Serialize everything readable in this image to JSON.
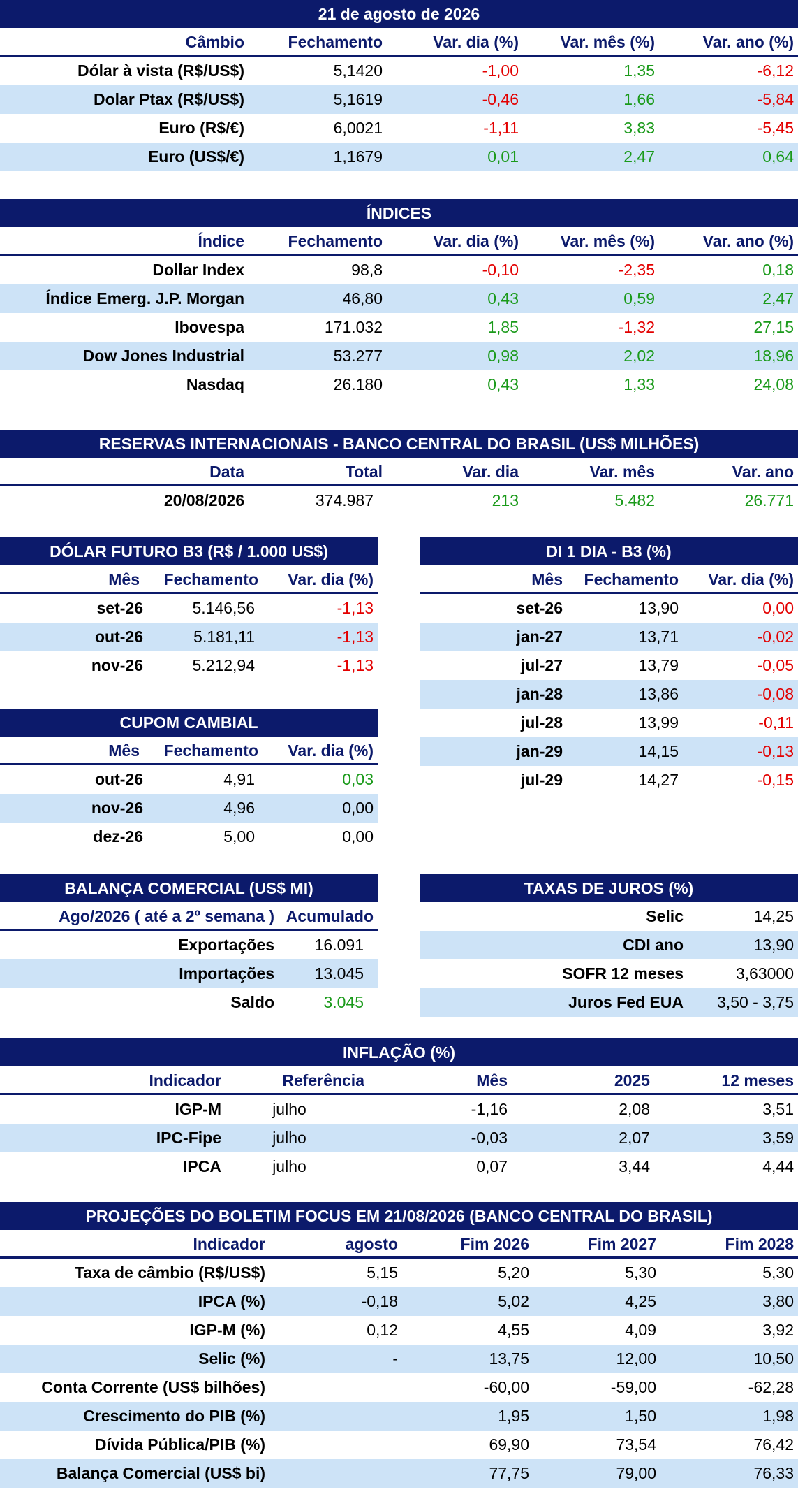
{
  "date_title": "21 de agosto de 2026",
  "cambio": {
    "headers": [
      "Câmbio",
      "Fechamento",
      "Var. dia (%)",
      "Var. mês (%)",
      "Var. ano (%)"
    ],
    "rows": [
      {
        "label": "Dólar à vista (R$/US$)",
        "close": "5,1420",
        "day": "-1,00",
        "month": "1,35",
        "year": "-6,12"
      },
      {
        "label": "Dolar Ptax (R$/US$)",
        "close": "5,1619",
        "day": "-0,46",
        "month": "1,66",
        "year": "-5,84"
      },
      {
        "label": "Euro (R$/€)",
        "close": "6,0021",
        "day": "-1,11",
        "month": "3,83",
        "year": "-5,45"
      },
      {
        "label": "Euro (US$/€)",
        "close": "1,1679",
        "day": "0,01",
        "month": "2,47",
        "year": "0,64"
      }
    ]
  },
  "indices": {
    "title": "ÍNDICES",
    "headers": [
      "Índice",
      "Fechamento",
      "Var. dia (%)",
      "Var. mês (%)",
      "Var. ano (%)"
    ],
    "rows": [
      {
        "label": "Dollar Index",
        "close": "98,8",
        "day": "-0,10",
        "month": "-2,35",
        "year": "0,18"
      },
      {
        "label": "Índice Emerg. J.P. Morgan",
        "close": "46,80",
        "day": "0,43",
        "month": "0,59",
        "year": "2,47"
      },
      {
        "label": "Ibovespa",
        "close": "171.032",
        "day": "1,85",
        "month": "-1,32",
        "year": "27,15"
      },
      {
        "label": "Dow Jones Industrial",
        "close": "53.277",
        "day": "0,98",
        "month": "2,02",
        "year": "18,96"
      },
      {
        "label": "Nasdaq",
        "close": "26.180",
        "day": "0,43",
        "month": "1,33",
        "year": "24,08"
      }
    ]
  },
  "reservas": {
    "title": "RESERVAS INTERNACIONAIS - BANCO CENTRAL DO BRASIL (US$ MILHÕES)",
    "headers": [
      "Data",
      "Total",
      "Var. dia",
      "Var. mês",
      "Var. ano"
    ],
    "row": {
      "date": "20/08/2026",
      "total": "374.987",
      "day": "213",
      "month": "5.482",
      "year": "26.771"
    }
  },
  "dolar_futuro": {
    "title": "DÓLAR FUTURO B3 (R$ / 1.000 US$)",
    "headers": [
      "Mês",
      "Fechamento",
      "Var. dia (%)"
    ],
    "rows": [
      {
        "month": "set-26",
        "close": "5.146,56",
        "day": "-1,13"
      },
      {
        "month": "out-26",
        "close": "5.181,11",
        "day": "-1,13"
      },
      {
        "month": "nov-26",
        "close": "5.212,94",
        "day": "-1,13"
      }
    ]
  },
  "di": {
    "title": "DI 1 DIA - B3 (%)",
    "headers": [
      "Mês",
      "Fechamento",
      "Var. dia (%)"
    ],
    "rows": [
      {
        "month": "set-26",
        "close": "13,90",
        "day": "0,00"
      },
      {
        "month": "jan-27",
        "close": "13,71",
        "day": "-0,02"
      },
      {
        "month": "jul-27",
        "close": "13,79",
        "day": "-0,05"
      },
      {
        "month": "jan-28",
        "close": "13,86",
        "day": "-0,08"
      },
      {
        "month": "jul-28",
        "close": "13,99",
        "day": "-0,11"
      },
      {
        "month": "jan-29",
        "close": "14,15",
        "day": "-0,13"
      },
      {
        "month": "jul-29",
        "close": "14,27",
        "day": "-0,15"
      }
    ]
  },
  "cupom": {
    "title": "CUPOM CAMBIAL",
    "headers": [
      "Mês",
      "Fechamento",
      "Var. dia (%)"
    ],
    "rows": [
      {
        "month": "out-26",
        "close": "4,91",
        "day": "0,03"
      },
      {
        "month": "nov-26",
        "close": "4,96",
        "day": "0,00"
      },
      {
        "month": "dez-26",
        "close": "5,00",
        "day": "0,00"
      }
    ]
  },
  "balanca": {
    "title": "BALANÇA COMERCIAL (US$ MI)",
    "headers": [
      "Ago/2026 ( até a 2º semana )",
      "Acumulado"
    ],
    "rows": [
      {
        "label": "Exportações",
        "value": "16.091"
      },
      {
        "label": "Importações",
        "value": "13.045"
      },
      {
        "label": "Saldo",
        "value": "3.045"
      }
    ]
  },
  "juros": {
    "title": "TAXAS DE JUROS (%)",
    "rows": [
      {
        "label": "Selic",
        "value": "14,25"
      },
      {
        "label": "CDI ano",
        "value": "13,90"
      },
      {
        "label": "SOFR 12 meses",
        "value": "3,63000"
      },
      {
        "label": "Juros Fed EUA",
        "value": "3,50 - 3,75"
      }
    ]
  },
  "inflacao": {
    "title": "INFLAÇÃO (%)",
    "headers": [
      "Indicador",
      "Referência",
      "Mês",
      "2025",
      "12 meses"
    ],
    "rows": [
      {
        "label": "IGP-M",
        "ref": "julho",
        "month": "-1,16",
        "y2025": "2,08",
        "m12": "3,51"
      },
      {
        "label": "IPC-Fipe",
        "ref": "julho",
        "month": "-0,03",
        "y2025": "2,07",
        "m12": "3,59"
      },
      {
        "label": "IPCA",
        "ref": "julho",
        "month": "0,07",
        "y2025": "3,44",
        "m12": "4,44"
      }
    ]
  },
  "focus": {
    "title": "PROJEÇÕES DO BOLETIM FOCUS EM 21/08/2026 (BANCO CENTRAL DO BRASIL)",
    "headers": [
      "Indicador",
      "agosto",
      "Fim 2026",
      "Fim 2027",
      "Fim 2028"
    ],
    "rows": [
      {
        "label": "Taxa de câmbio (R$/US$)",
        "aug": "5,15",
        "f26": "5,20",
        "f27": "5,30",
        "f28": "5,30"
      },
      {
        "label": "IPCA (%)",
        "aug": "-0,18",
        "f26": "5,02",
        "f27": "4,25",
        "f28": "3,80"
      },
      {
        "label": "IGP-M (%)",
        "aug": "0,12",
        "f26": "4,55",
        "f27": "4,09",
        "f28": "3,92"
      },
      {
        "label": "Selic (%)",
        "aug": "-",
        "f26": "13,75",
        "f27": "12,00",
        "f28": "10,50"
      },
      {
        "label": "Conta Corrente (US$ bilhões)",
        "aug": "",
        "f26": "-60,00",
        "f27": "-59,00",
        "f28": "-62,28"
      },
      {
        "label": "Crescimento do PIB (%)",
        "aug": "",
        "f26": "1,95",
        "f27": "1,50",
        "f28": "1,98"
      },
      {
        "label": "Dívida Pública/PIB (%)",
        "aug": "",
        "f26": "69,90",
        "f27": "73,54",
        "f28": "76,42"
      },
      {
        "label": "Balança Comercial (US$ bi)",
        "aug": "",
        "f26": "77,75",
        "f27": "79,00",
        "f28": "76,33"
      }
    ]
  },
  "colors": {
    "navy": "#0c1a6b",
    "shade": "#cde3f7",
    "negative": "#e30000",
    "positive": "#1a9a1a"
  }
}
